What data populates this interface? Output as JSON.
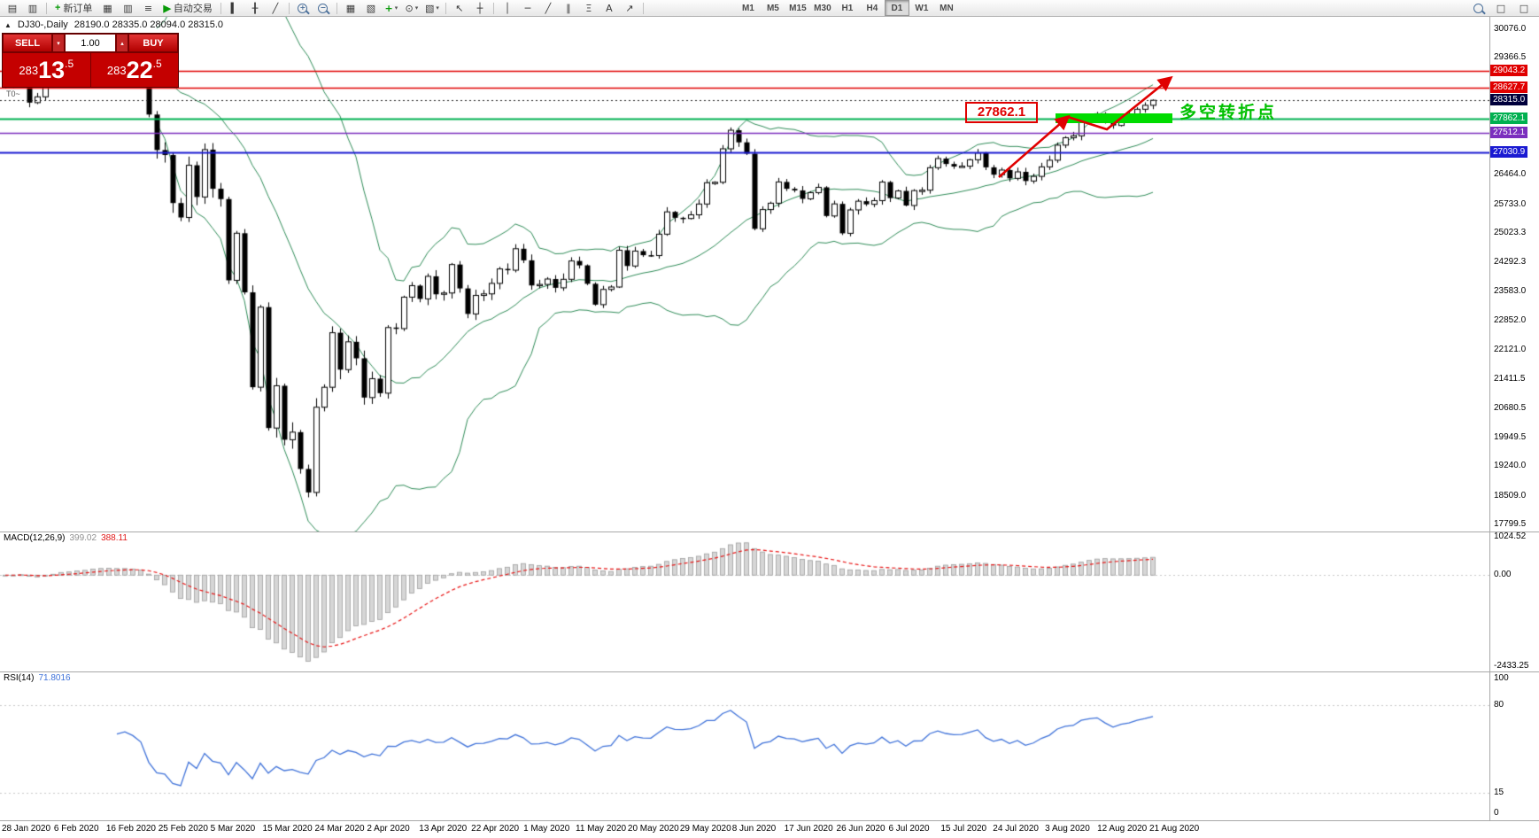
{
  "toolbar": {
    "new_order_label": "新订单",
    "autotrade_label": "自动交易",
    "timeframes": [
      "M1",
      "M5",
      "M15",
      "M30",
      "H1",
      "H4",
      "D1",
      "W1",
      "MN"
    ],
    "active_timeframe": "D1"
  },
  "icons": {
    "collapse": "▲",
    "chevron_down": "▾",
    "chevron_up": "▴",
    "new_chart": "▤",
    "profiles": "▥",
    "plus": "+",
    "market_watch": "▦",
    "terminal": "▥",
    "navigator": "≡",
    "play": "▶",
    "bars": "▍",
    "candles": "╂",
    "line_chart": "╱",
    "tile": "▦",
    "cascade": "▧",
    "clock": "⊙",
    "template": "▧",
    "cursor": "↖",
    "crosshair": "┼",
    "vline": "│",
    "hline": "─",
    "trendline": "╱",
    "channel": "∥",
    "fibonacci": "Ξ",
    "text": "A",
    "arrow": "↗",
    "window": "□"
  },
  "chart_header": {
    "symbol_period": "DJ30-,Daily",
    "ohlc": "28190.0 28335.0 28094.0 28315.0"
  },
  "trade_panel": {
    "sell_label": "SELL",
    "buy_label": "BUY",
    "volume": "1.00",
    "sell_price": "28313.5",
    "buy_price": "28322.5"
  },
  "price_axis": {
    "max": 30076.0,
    "min": 17799.5,
    "ticks": [
      "30076.0",
      "29366.5",
      "26464.0",
      "25733.0",
      "25023.3",
      "24292.3",
      "23583.0",
      "22852.0",
      "22121.0",
      "21411.5",
      "20680.5",
      "19949.5",
      "19240.0",
      "18509.0",
      "17799.5"
    ],
    "levels": [
      {
        "label": "29043.2",
        "color": "#e00000",
        "width": 1.5
      },
      {
        "label": "28627.7",
        "color": "#e00000",
        "width": 1.5
      },
      {
        "label": "27862.1",
        "color": "#00b050",
        "width": 2
      },
      {
        "label": "27512.1",
        "color": "#7b2fbe",
        "width": 1.5
      },
      {
        "label": "27030.9",
        "color": "#1a1ad2",
        "width": 2
      }
    ],
    "current": {
      "label": "28315.0",
      "bg": "#00003c"
    }
  },
  "macd": {
    "name": "MACD(12,26,9)",
    "main_value": "399.02",
    "signal_value": "388.11",
    "axis_max": "1024.52",
    "axis_zero": "0.00",
    "axis_min": "-2433.25",
    "max": 1024.52,
    "min": -2433.25,
    "bar_color": "#d6d6d6",
    "bar_border": "#9e9e9e",
    "signal_color": "#e81717"
  },
  "rsi": {
    "name": "RSI(14)",
    "value": "71.8016",
    "line_color": "#3f72d9",
    "levels": [
      {
        "v": 100,
        "label": "100"
      },
      {
        "v": 80,
        "label": "80"
      },
      {
        "v": 15,
        "label": "15"
      },
      {
        "v": 0,
        "label": "0"
      }
    ]
  },
  "dates": [
    "28 Jan 2020",
    "6 Feb 2020",
    "16 Feb 2020",
    "25 Feb 2020",
    "5 Mar 2020",
    "15 Mar 2020",
    "24 Mar 2020",
    "2 Apr 2020",
    "13 Apr 2020",
    "22 Apr 2020",
    "1 May 2020",
    "11 May 2020",
    "20 May 2020",
    "29 May 2020",
    "8 Jun 2020",
    "17 Jun 2020",
    "26 Jun 2020",
    "6 Jul 2020",
    "15 Jul 2020",
    "24 Jul 2020",
    "3 Aug 2020",
    "12 Aug 2020",
    "21 Aug 2020"
  ],
  "annotations": {
    "price_callout": "27862.1",
    "note_text": "多空转折点",
    "corner_mark": "T0~"
  },
  "chart_data": {
    "type": "candlestick",
    "symbol": "DJ30",
    "timeframe": "Daily",
    "bollinger_period": 20,
    "bollinger_dev": 2,
    "bollinger_color": "#2e8b57",
    "macd_params": [
      12,
      26,
      9
    ],
    "rsi_period": 14,
    "last_ohlc": {
      "o": 28190.0,
      "h": 28335.0,
      "l": 28094.0,
      "c": 28315.0
    },
    "closes": [
      28723,
      28734,
      28859,
      28256,
      28400,
      28808,
      29291,
      29380,
      29103,
      29277,
      29276,
      29551,
      29423,
      29398,
      29232,
      29348,
      29220,
      28992,
      27961,
      27081,
      26958,
      25767,
      25409,
      26703,
      25917,
      27091,
      26121,
      25865,
      23851,
      25018,
      23553,
      21201,
      23186,
      20189,
      21237,
      19899,
      20087,
      19174,
      18592,
      20705,
      21200,
      22552,
      21637,
      22327,
      21917,
      20944,
      21413,
      21053,
      22680,
      22654,
      23434,
      23719,
      23391,
      23950,
      23504,
      23537,
      24242,
      23650,
      23018,
      23476,
      23515,
      23775,
      24134,
      24102,
      24634,
      24346,
      23724,
      23749,
      23883,
      23665,
      23876,
      24331,
      24222,
      23765,
      23248,
      23625,
      23685,
      24597,
      24206,
      24576,
      24474,
      24465,
      24995,
      25548,
      25401,
      25383,
      25475,
      25743,
      26270,
      26282,
      27111,
      27572,
      27272,
      26990,
      25128,
      25605,
      25763,
      26290,
      26120,
      26080,
      25871,
      26025,
      26156,
      25446,
      25746,
      25016,
      25596,
      25813,
      25735,
      25827,
      26287,
      25890,
      26067,
      25706,
      26075,
      26086,
      26643,
      26870,
      26735,
      26672,
      26681,
      26840,
      27006,
      26652,
      26470,
      26585,
      26379,
      26540,
      26313,
      26428,
      26664,
      26828,
      27202,
      27387,
      27433,
      27791,
      27910,
      27977,
      27820,
      27690,
      27845,
      27930,
      28092,
      28190,
      28315
    ]
  }
}
